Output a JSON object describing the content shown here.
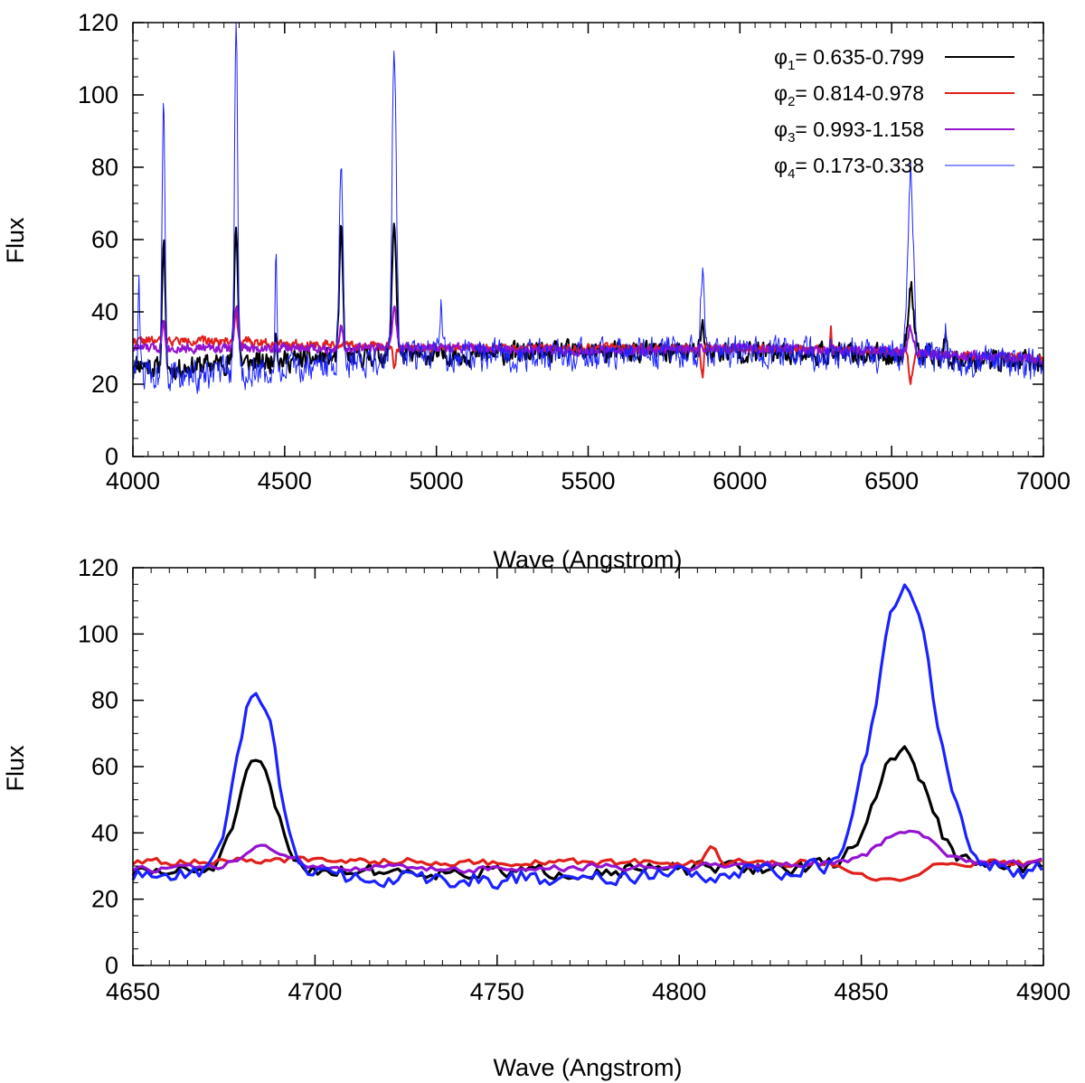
{
  "chart_data": [
    {
      "type": "line",
      "title": "",
      "xlabel": "Wave (Angstrom)",
      "ylabel": "Flux",
      "xlim": [
        4000,
        7000
      ],
      "ylim": [
        0,
        120
      ],
      "x_ticks": [
        "4000",
        "4500",
        "5000",
        "5500",
        "6000",
        "6500",
        "7000"
      ],
      "y_ticks": [
        "0",
        "20",
        "40",
        "60",
        "80",
        "100",
        "120"
      ],
      "legend_position": "top-right",
      "grid": false,
      "series": [
        {
          "name_prefix": "φ",
          "name_sub": "1",
          "name_suffix": "= 0.635-0.799",
          "color": "#000000",
          "baseline": [
            [
              4000,
              26
            ],
            [
              4100,
              24
            ],
            [
              4200,
              25
            ],
            [
              4300,
              26
            ],
            [
              4400,
              26
            ],
            [
              4600,
              27
            ],
            [
              4800,
              28
            ],
            [
              5000,
              28
            ],
            [
              5500,
              29
            ],
            [
              6000,
              29
            ],
            [
              6500,
              28
            ],
            [
              7000,
              26
            ]
          ],
          "noise": 4,
          "seed": 11,
          "lines": [
            [
              4101,
              60,
              5
            ],
            [
              4340,
              64,
              6
            ],
            [
              4471,
              35,
              4
            ],
            [
              4686,
              62,
              6
            ],
            [
              4861,
              65,
              7
            ],
            [
              5876,
              38,
              5
            ],
            [
              6563,
              47,
              10
            ],
            [
              6678,
              32,
              5
            ]
          ]
        },
        {
          "name_prefix": "φ",
          "name_sub": "2",
          "name_suffix": "= 0.814-0.978",
          "color": "#e0201b",
          "baseline": [
            [
              4000,
              32
            ],
            [
              4300,
              32
            ],
            [
              4600,
              31
            ],
            [
              5000,
              30
            ],
            [
              5500,
              30
            ],
            [
              6000,
              30
            ],
            [
              6500,
              29
            ],
            [
              7000,
              27
            ]
          ],
          "noise": 1.6,
          "seed": 22,
          "lines": [
            [
              4101,
              36,
              4
            ],
            [
              4340,
              40,
              5
            ],
            [
              4861,
              25,
              5
            ],
            [
              5876,
              22,
              4
            ],
            [
              6300,
              35,
              2
            ],
            [
              6563,
              21,
              6
            ]
          ]
        },
        {
          "name_prefix": "φ",
          "name_sub": "3",
          "name_suffix": "= 0.993-1.158",
          "color": "#9313d0",
          "baseline": [
            [
              4000,
              30
            ],
            [
              4300,
              30
            ],
            [
              4600,
              30
            ],
            [
              5000,
              30
            ],
            [
              5500,
              29
            ],
            [
              6000,
              30
            ],
            [
              6500,
              29
            ],
            [
              7000,
              27
            ]
          ],
          "noise": 1.8,
          "seed": 33,
          "lines": [
            [
              4101,
              38,
              5
            ],
            [
              4340,
              42,
              6
            ],
            [
              4686,
              36,
              6
            ],
            [
              4861,
              41,
              7
            ],
            [
              5876,
              30,
              5
            ],
            [
              6563,
              36,
              8
            ]
          ]
        },
        {
          "name_prefix": "φ",
          "name_sub": "4",
          "name_suffix": "= 0.173-0.338",
          "color": "#1a22ff",
          "baseline": [
            [
              4000,
              24
            ],
            [
              4100,
              22
            ],
            [
              4200,
              22
            ],
            [
              4300,
              23
            ],
            [
              4400,
              23
            ],
            [
              4500,
              24
            ],
            [
              4600,
              25
            ],
            [
              4800,
              27
            ],
            [
              5000,
              28
            ],
            [
              5500,
              28
            ],
            [
              6000,
              29
            ],
            [
              6500,
              28
            ],
            [
              7000,
              25
            ]
          ],
          "noise": 6,
          "seed": 44,
          "lines": [
            [
              4020,
              46,
              3
            ],
            [
              4101,
              101,
              5
            ],
            [
              4340,
              120,
              5
            ],
            [
              4471,
              56,
              3
            ],
            [
              4686,
              83,
              6
            ],
            [
              4861,
              114,
              7
            ],
            [
              5015,
              40,
              3
            ],
            [
              5876,
              52,
              5
            ],
            [
              6563,
              79,
              9
            ],
            [
              6678,
              36,
              4
            ]
          ]
        }
      ]
    },
    {
      "type": "line",
      "title": "",
      "xlabel": "Wave (Angstrom)",
      "ylabel": "Flux",
      "xlim": [
        4650,
        4900
      ],
      "ylim": [
        0,
        120
      ],
      "x_ticks": [
        "4650",
        "4700",
        "4750",
        "4800",
        "4850",
        "4900"
      ],
      "y_ticks": [
        "0",
        "20",
        "40",
        "60",
        "80",
        "100",
        "120"
      ],
      "legend_position": "none",
      "grid": false,
      "series": [
        {
          "name_prefix": "φ",
          "name_sub": "1",
          "name_suffix": "= 0.635-0.799",
          "color": "#000000",
          "baseline": [
            [
              4650,
              28
            ],
            [
              4700,
              29
            ],
            [
              4750,
              28
            ],
            [
              4800,
              29
            ],
            [
              4850,
              30
            ],
            [
              4900,
              30
            ]
          ],
          "noise": 3,
          "seed": 51,
          "lines": [
            [
              4684,
              61,
              5
            ],
            [
              4861,
              65,
              7
            ]
          ]
        },
        {
          "name_prefix": "φ",
          "name_sub": "2",
          "name_suffix": "= 0.814-0.978",
          "color": "#e0201b",
          "baseline": [
            [
              4650,
              31
            ],
            [
              4700,
              32
            ],
            [
              4750,
              31
            ],
            [
              4800,
              31
            ],
            [
              4850,
              31
            ],
            [
              4900,
              31
            ]
          ],
          "noise": 1.5,
          "seed": 62,
          "lines": [
            [
              4858,
              25,
              7
            ],
            [
              4809,
              36,
              1.5
            ]
          ]
        },
        {
          "name_prefix": "φ",
          "name_sub": "3",
          "name_suffix": "= 0.993-1.158",
          "color": "#9313d0",
          "baseline": [
            [
              4650,
              29
            ],
            [
              4700,
              30
            ],
            [
              4750,
              29
            ],
            [
              4800,
              30
            ],
            [
              4850,
              31
            ],
            [
              4900,
              31
            ]
          ],
          "noise": 1.5,
          "seed": 73,
          "lines": [
            [
              4686,
              36,
              5
            ],
            [
              4863,
              41,
              7
            ]
          ]
        },
        {
          "name_prefix": "φ",
          "name_sub": "4",
          "name_suffix": "= 0.173-0.338",
          "color": "#1a22ff",
          "baseline": [
            [
              4650,
              27
            ],
            [
              4700,
              27
            ],
            [
              4750,
              26
            ],
            [
              4800,
              28
            ],
            [
              4850,
              29
            ],
            [
              4900,
              29
            ]
          ],
          "noise": 4,
          "seed": 84,
          "lines": [
            [
              4684,
              83,
              5.5
            ],
            [
              4862,
              114,
              8
            ]
          ]
        }
      ]
    }
  ]
}
